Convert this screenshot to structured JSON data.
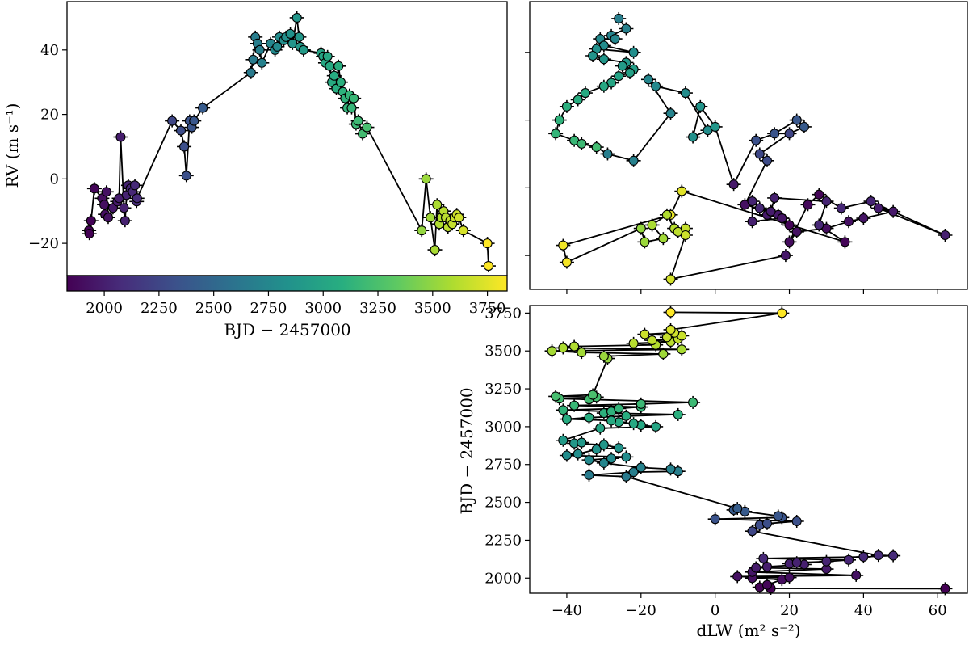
{
  "chart_data": [
    {
      "id": "rv-time",
      "type": "scatter",
      "xlabel": "BJD − 2457000",
      "ylabel": "RV (m s⁻¹)",
      "xlim": [
        1830,
        3840
      ],
      "ylim": [
        -30,
        55
      ],
      "xticks": [
        2000,
        2250,
        2500,
        2750,
        3000,
        3250,
        3500,
        3750
      ],
      "xtick_labels": [
        "2000",
        "2250",
        "2500",
        "2750",
        "3000",
        "3250",
        "3500",
        "3750"
      ],
      "yticks": [
        -20,
        0,
        20,
        40
      ],
      "ytick_labels": [
        "−20",
        "0",
        "20",
        "40"
      ],
      "colorbar": {
        "colormap": "viridis",
        "range": [
          1930,
          3750
        ]
      },
      "x": [
        1930,
        1932,
        1940,
        1955,
        1990,
        2000,
        2004,
        2010,
        2018,
        2040,
        2060,
        2068,
        2075,
        2090,
        2095,
        2102,
        2110,
        2120,
        2130,
        2140,
        2148,
        2150,
        2310,
        2350,
        2365,
        2375,
        2390,
        2400,
        2410,
        2450,
        2670,
        2680,
        2690,
        2700,
        2710,
        2720,
        2760,
        2780,
        2790,
        2800,
        2820,
        2830,
        2850,
        2860,
        2880,
        2890,
        2895,
        2910,
        2990,
        3000,
        3010,
        3020,
        3030,
        3040,
        3050,
        3060,
        3070,
        3080,
        3090,
        3100,
        3110,
        3120,
        3130,
        3140,
        3150,
        3160,
        3180,
        3200,
        3450,
        3470,
        3490,
        3510,
        3520,
        3530,
        3540,
        3550,
        3560,
        3570,
        3580,
        3590,
        3600,
        3610,
        3620,
        3640,
        3750,
        3755
      ],
      "y": [
        -16,
        -17,
        -13,
        -3,
        -6,
        -8,
        -11,
        -4,
        -12,
        -9,
        -7,
        -6,
        13,
        -9,
        -13,
        -5,
        -2,
        -3,
        -4,
        -2,
        -7,
        -6,
        18,
        15,
        10,
        1,
        18,
        16,
        18,
        22,
        33,
        37,
        44,
        42,
        40,
        36,
        42,
        40,
        41,
        44,
        43,
        44,
        45,
        42,
        50,
        44,
        41,
        40,
        39,
        38,
        36,
        38,
        35,
        30,
        32,
        28,
        35,
        30,
        27,
        25,
        22,
        26,
        22,
        25,
        17,
        18,
        14,
        16,
        -16,
        0,
        -12,
        -22,
        -8,
        -14,
        -12,
        -10,
        -12,
        -15,
        -13,
        -14,
        -12,
        -11,
        -12,
        -16,
        -20,
        -27
      ]
    },
    {
      "id": "rv-dlw",
      "type": "scatter",
      "xlabel": "",
      "ylabel": "",
      "xlim": [
        -50,
        68
      ],
      "ylim": [
        -30,
        55
      ],
      "colorbar": {
        "colormap": "viridis",
        "range": [
          1930,
          3750
        ]
      },
      "x": [
        -26,
        -24,
        -28,
        -27,
        -31,
        -30,
        -22,
        -32,
        -33,
        -30,
        -24,
        -25,
        -22,
        -23,
        -26,
        -28,
        -30,
        -35,
        -37,
        -40,
        -42,
        -43,
        -38,
        -36,
        -32,
        -29,
        -22,
        -12,
        -18,
        -16,
        -8,
        -2,
        -6,
        -4,
        0,
        5,
        11,
        16,
        22,
        24,
        20,
        12,
        14,
        8,
        15,
        17,
        18,
        10,
        10,
        12,
        20,
        22,
        30,
        36,
        40,
        48,
        44,
        62,
        42,
        34,
        28,
        25,
        20,
        22,
        18,
        14,
        15,
        16,
        30,
        28,
        35,
        -9,
        -12,
        -41,
        -40,
        -20,
        -19,
        -14,
        -17,
        -13,
        -11,
        -10,
        -8,
        -8,
        -12,
        19
      ],
      "y": [
        50,
        47,
        45,
        44,
        44,
        42,
        40,
        41,
        39,
        38,
        37,
        36,
        35,
        34,
        33,
        31,
        30,
        28,
        26,
        24,
        20,
        16,
        14,
        13,
        12,
        10,
        8,
        22,
        32,
        30,
        28,
        17,
        15,
        24,
        18,
        1,
        14,
        16,
        20,
        18,
        16,
        10,
        8,
        -5,
        -7,
        -8,
        -9,
        -10,
        -4,
        -6,
        -11,
        -13,
        -12,
        -10,
        -9,
        -7,
        -6,
        -14,
        -4,
        -6,
        -2,
        -5,
        -16,
        -13,
        -9,
        -8,
        -7,
        -3,
        -4,
        -11,
        -16,
        -1,
        -8,
        -17,
        -22,
        -12,
        -16,
        -15,
        -11,
        -8,
        -12,
        -13,
        -12,
        -14,
        -27,
        -20
      ]
    },
    {
      "id": "time-dlw",
      "type": "scatter",
      "xlabel": "dLW (m² s⁻²)",
      "ylabel": "BJD − 2457000",
      "xlim": [
        -50,
        68
      ],
      "ylim": [
        1900,
        3800
      ],
      "xticks": [
        -40,
        -20,
        0,
        20,
        40,
        60
      ],
      "xtick_labels": [
        "−40",
        "−20",
        "0",
        "20",
        "40",
        "60"
      ],
      "yticks": [
        2000,
        2250,
        2500,
        2750,
        3000,
        3250,
        3500,
        3750
      ],
      "ytick_labels": [
        "2000",
        "2250",
        "2500",
        "2750",
        "3000",
        "3250",
        "3500",
        "3750"
      ],
      "colorbar": {
        "colormap": "viridis",
        "range": [
          1930,
          3750
        ]
      },
      "x": [
        62,
        15,
        12,
        14,
        18,
        10,
        20,
        6,
        38,
        10,
        30,
        11,
        14,
        24,
        20,
        22,
        30,
        36,
        13,
        40,
        48,
        44,
        10,
        12,
        14,
        22,
        0,
        18,
        17,
        8,
        5,
        6,
        -24,
        -34,
        -22,
        -10,
        -12,
        -20,
        -30,
        -34,
        -28,
        -24,
        -40,
        -37,
        -32,
        -26,
        -30,
        -38,
        -36,
        -41,
        -31,
        -16,
        -20,
        -22,
        -26,
        -28,
        -40,
        -34,
        -24,
        -10,
        -30,
        -28,
        -41,
        -26,
        -20,
        -38,
        -20,
        -6,
        -34,
        -42,
        -32,
        -43,
        -33,
        -29,
        -30,
        -14,
        -36,
        -44,
        -9,
        -41,
        -38,
        -16,
        -22,
        -12,
        -17,
        -10,
        -13,
        -9,
        -19,
        -11,
        -12,
        18,
        -12
      ],
      "y": [
        1930,
        1932,
        1940,
        1955,
        1990,
        2000,
        2004,
        2010,
        2018,
        2040,
        2060,
        2068,
        2075,
        2090,
        2095,
        2102,
        2110,
        2120,
        2130,
        2140,
        2148,
        2150,
        2310,
        2350,
        2360,
        2375,
        2390,
        2400,
        2410,
        2440,
        2450,
        2460,
        2670,
        2680,
        2700,
        2705,
        2720,
        2730,
        2760,
        2780,
        2790,
        2800,
        2810,
        2820,
        2850,
        2860,
        2880,
        2890,
        2895,
        2910,
        2990,
        3000,
        3010,
        3020,
        3030,
        3040,
        3050,
        3060,
        3070,
        3080,
        3090,
        3100,
        3110,
        3120,
        3130,
        3140,
        3150,
        3160,
        3180,
        3185,
        3195,
        3200,
        3210,
        3450,
        3465,
        3480,
        3490,
        3500,
        3510,
        3520,
        3530,
        3540,
        3550,
        3560,
        3570,
        3580,
        3590,
        3600,
        3610,
        3620,
        3640,
        3750,
        3755
      ]
    }
  ]
}
